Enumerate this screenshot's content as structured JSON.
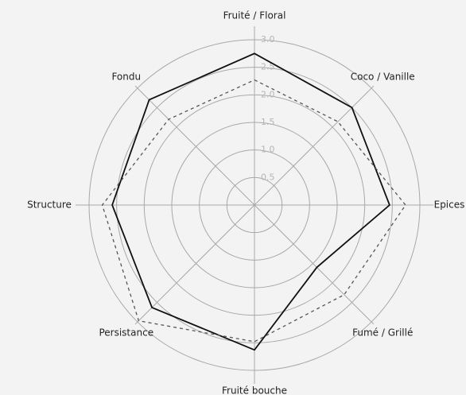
{
  "chart_data": {
    "type": "radar",
    "categories": [
      "Fruité / Floral",
      "Coco / Vanille",
      "Epices",
      "Fumé / Grillé",
      "Fruité bouche",
      "Persistance",
      "Structure",
      "Fondu"
    ],
    "series": [
      {
        "color": "#111111",
        "dash": false,
        "values": [
          2.75,
          2.5,
          2.45,
          1.6,
          2.63,
          2.63,
          2.58,
          2.7
        ]
      },
      {
        "color": "#555555",
        "dash": true,
        "values": [
          2.27,
          2.14,
          2.74,
          2.3,
          2.48,
          2.97,
          2.76,
          2.2
        ]
      }
    ],
    "rlim": [
      0,
      3
    ],
    "rticks": [
      0.5,
      {
        "value": 1,
        "label": "1.0"
      },
      1.5,
      {
        "value": 2,
        "label": "2.0"
      },
      2.5,
      {
        "value": 3,
        "label": "3.0"
      }
    ],
    "grid": true
  }
}
